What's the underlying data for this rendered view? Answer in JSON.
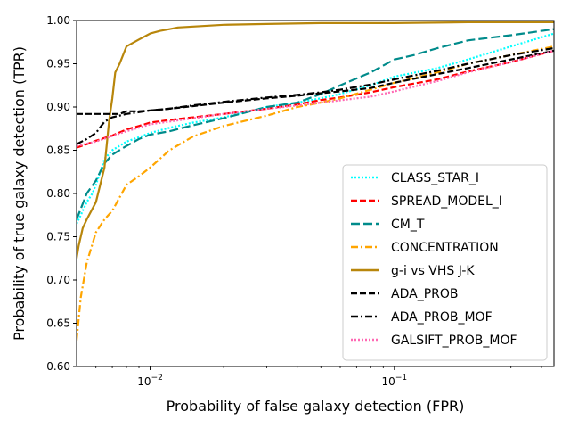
{
  "chart_data": {
    "type": "line",
    "xscale": "log",
    "xlabel": "Probability of false galaxy detection (FPR)",
    "ylabel": "Probability of true galaxy detection (TPR)",
    "xlim": [
      0.005,
      0.45
    ],
    "ylim": [
      0.6,
      1.0
    ],
    "xticks": [
      {
        "value": 0.01,
        "base": "10",
        "exp": "−2"
      },
      {
        "value": 0.1,
        "base": "10",
        "exp": "−1"
      }
    ],
    "yticks": [
      "0.60",
      "0.65",
      "0.70",
      "0.75",
      "0.80",
      "0.85",
      "0.90",
      "0.95",
      "1.00"
    ],
    "legend_position": "lower-right",
    "series": [
      {
        "name": "CLASS_STAR_I",
        "color": "#00ffff",
        "dash": "dotted",
        "x": [
          0.005,
          0.0052,
          0.0055,
          0.0058,
          0.006,
          0.0065,
          0.007,
          0.008,
          0.009,
          0.01,
          0.012,
          0.015,
          0.02,
          0.03,
          0.04,
          0.05,
          0.06,
          0.08,
          0.1,
          0.15,
          0.2,
          0.3,
          0.45
        ],
        "y": [
          0.765,
          0.775,
          0.79,
          0.8,
          0.81,
          0.84,
          0.85,
          0.86,
          0.865,
          0.87,
          0.876,
          0.882,
          0.888,
          0.9,
          0.905,
          0.91,
          0.915,
          0.925,
          0.935,
          0.945,
          0.955,
          0.97,
          0.985
        ]
      },
      {
        "name": "SPREAD_MODEL_I",
        "color": "#ff0000",
        "dash": "dashed",
        "x": [
          0.005,
          0.0055,
          0.006,
          0.007,
          0.008,
          0.009,
          0.01,
          0.012,
          0.015,
          0.02,
          0.03,
          0.04,
          0.05,
          0.06,
          0.08,
          0.1,
          0.15,
          0.2,
          0.3,
          0.45
        ],
        "y": [
          0.853,
          0.857,
          0.861,
          0.867,
          0.874,
          0.878,
          0.882,
          0.885,
          0.888,
          0.892,
          0.898,
          0.903,
          0.908,
          0.911,
          0.917,
          0.923,
          0.932,
          0.941,
          0.952,
          0.965
        ]
      },
      {
        "name": "CM_T",
        "color": "#008b8b",
        "dash": "longdash",
        "x": [
          0.005,
          0.0055,
          0.006,
          0.0065,
          0.007,
          0.008,
          0.009,
          0.01,
          0.012,
          0.015,
          0.02,
          0.03,
          0.04,
          0.05,
          0.06,
          0.08,
          0.1,
          0.12,
          0.15,
          0.2,
          0.3,
          0.45
        ],
        "y": [
          0.77,
          0.8,
          0.815,
          0.835,
          0.845,
          0.855,
          0.863,
          0.868,
          0.872,
          0.879,
          0.887,
          0.9,
          0.905,
          0.915,
          0.925,
          0.94,
          0.955,
          0.96,
          0.968,
          0.977,
          0.983,
          0.99
        ]
      },
      {
        "name": "CONCENTRATION",
        "color": "#ffa500",
        "dash": "dashdot",
        "x": [
          0.005,
          0.0052,
          0.0055,
          0.006,
          0.0065,
          0.007,
          0.008,
          0.009,
          0.01,
          0.012,
          0.015,
          0.02,
          0.03,
          0.04,
          0.05,
          0.06,
          0.08,
          0.1,
          0.15,
          0.2,
          0.3,
          0.45
        ],
        "y": [
          0.63,
          0.68,
          0.72,
          0.755,
          0.77,
          0.78,
          0.81,
          0.82,
          0.83,
          0.85,
          0.866,
          0.878,
          0.89,
          0.9,
          0.905,
          0.91,
          0.92,
          0.928,
          0.94,
          0.95,
          0.96,
          0.97
        ]
      },
      {
        "name": "g-i vs VHS J-K",
        "color": "#b8860b",
        "dash": "solid",
        "x": [
          0.005,
          0.0051,
          0.0053,
          0.0055,
          0.006,
          0.0065,
          0.0068,
          0.007,
          0.0072,
          0.0075,
          0.008,
          0.009,
          0.01,
          0.011,
          0.012,
          0.013,
          0.015,
          0.02,
          0.03,
          0.05,
          0.1,
          0.2,
          0.45
        ],
        "y": [
          0.725,
          0.74,
          0.76,
          0.77,
          0.79,
          0.83,
          0.885,
          0.91,
          0.94,
          0.95,
          0.97,
          0.978,
          0.985,
          0.988,
          0.99,
          0.992,
          0.993,
          0.995,
          0.996,
          0.997,
          0.997,
          0.998,
          0.998
        ]
      },
      {
        "name": "ADA_PROB",
        "color": "#000000",
        "dash": "dashed",
        "x": [
          0.005,
          0.0055,
          0.006,
          0.0065,
          0.007,
          0.0075,
          0.008,
          0.009,
          0.01,
          0.012,
          0.015,
          0.02,
          0.03,
          0.04,
          0.05,
          0.06,
          0.08,
          0.1,
          0.15,
          0.2,
          0.3,
          0.45
        ],
        "y": [
          0.892,
          0.892,
          0.892,
          0.892,
          0.892,
          0.892,
          0.895,
          0.895,
          0.896,
          0.898,
          0.901,
          0.905,
          0.91,
          0.913,
          0.916,
          0.918,
          0.922,
          0.928,
          0.938,
          0.945,
          0.955,
          0.965
        ]
      },
      {
        "name": "ADA_PROB_MOF",
        "color": "#000000",
        "dash": "dashdot",
        "x": [
          0.005,
          0.0055,
          0.006,
          0.0065,
          0.007,
          0.008,
          0.009,
          0.01,
          0.012,
          0.015,
          0.02,
          0.03,
          0.04,
          0.05,
          0.06,
          0.08,
          0.1,
          0.15,
          0.2,
          0.3,
          0.45
        ],
        "y": [
          0.857,
          0.863,
          0.87,
          0.883,
          0.888,
          0.892,
          0.894,
          0.896,
          0.898,
          0.902,
          0.906,
          0.911,
          0.914,
          0.917,
          0.92,
          0.926,
          0.932,
          0.942,
          0.95,
          0.96,
          0.968
        ]
      },
      {
        "name": "GALSIFT_PROB_MOF",
        "color": "#ff69b4",
        "dash": "dotted",
        "x": [
          0.005,
          0.006,
          0.008,
          0.01,
          0.02,
          0.05,
          0.08,
          0.1,
          0.15,
          0.2,
          0.3,
          0.45
        ],
        "y": [
          0.855,
          0.86,
          0.872,
          0.88,
          0.892,
          0.905,
          0.912,
          0.918,
          0.93,
          0.94,
          0.952,
          0.965
        ]
      }
    ]
  }
}
